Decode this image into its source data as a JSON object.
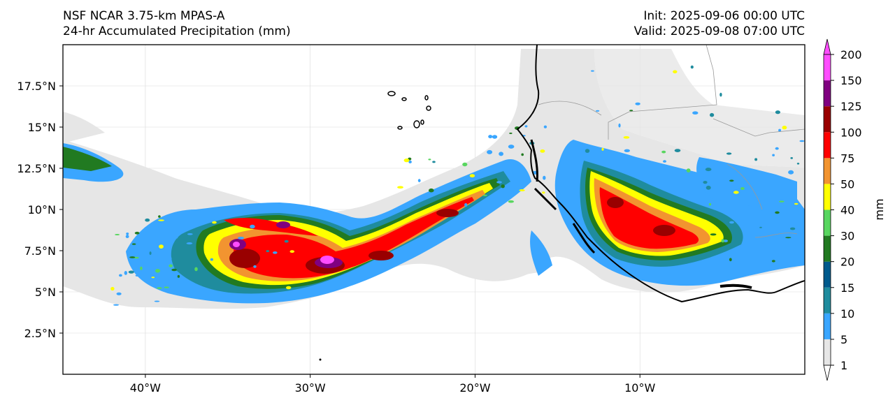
{
  "header": {
    "model": "NSF NCAR 3.75-km MPAS-A",
    "field": "24-hr Accumulated Precipitation (mm)",
    "init": "Init: 2025-09-06 00:00 UTC",
    "valid": "Valid: 2025-09-08 07:00 UTC"
  },
  "map": {
    "lon_range": [
      -45,
      0
    ],
    "lat_range": [
      0,
      20
    ],
    "lat_ticks": [
      {
        "value": 17.5,
        "label": "17.5°N"
      },
      {
        "value": 15,
        "label": "15°N"
      },
      {
        "value": 12.5,
        "label": "12.5°N"
      },
      {
        "value": 10,
        "label": "10°N"
      },
      {
        "value": 7.5,
        "label": "7.5°N"
      },
      {
        "value": 5,
        "label": "5°N"
      },
      {
        "value": 2.5,
        "label": "2.5°N"
      }
    ],
    "lon_ticks": [
      {
        "value": -40,
        "label": "40°W"
      },
      {
        "value": -30,
        "label": "30°W"
      },
      {
        "value": -20,
        "label": "20°W"
      },
      {
        "value": -10,
        "label": "10°W"
      }
    ],
    "gridlines": true
  },
  "colorbar": {
    "unit_label": "mm",
    "levels": [
      1,
      5,
      10,
      15,
      20,
      30,
      40,
      50,
      75,
      100,
      125,
      150,
      200
    ],
    "colors": [
      "#e6e6e6",
      "#3aa6ff",
      "#1f8c9e",
      "#005a8c",
      "#217a21",
      "#58d65f",
      "#ffff00",
      "#f29430",
      "#ff0000",
      "#990000",
      "#800080",
      "#ff4dff"
    ],
    "extend": "both"
  }
}
